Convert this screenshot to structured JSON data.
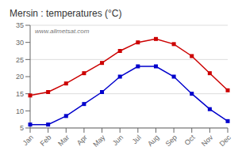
{
  "chart_data": {
    "type": "line",
    "title": "Mersin : temperatures (°C)",
    "annotations": [
      "www.allmetsat.com"
    ],
    "categories": [
      "Jan",
      "Feb",
      "Mar",
      "Apr",
      "May",
      "Jun",
      "Jul",
      "Aug",
      "Sep",
      "Oct",
      "Nov",
      "Dec"
    ],
    "series": [
      {
        "color": "#cc0000",
        "marker": "square",
        "values": [
          14.5,
          15.5,
          18.0,
          21.0,
          24.0,
          27.5,
          30.0,
          31.0,
          29.5,
          26.0,
          21.0,
          16.0
        ]
      },
      {
        "color": "#0000cc",
        "marker": "square",
        "values": [
          6.0,
          6.0,
          8.5,
          12.0,
          15.5,
          20.0,
          23.0,
          23.0,
          20.0,
          15.0,
          10.5,
          7.0
        ]
      }
    ],
    "ylim": [
      5,
      35
    ],
    "yticks": [
      5,
      10,
      15,
      20,
      25,
      30,
      35
    ],
    "grid": true
  }
}
